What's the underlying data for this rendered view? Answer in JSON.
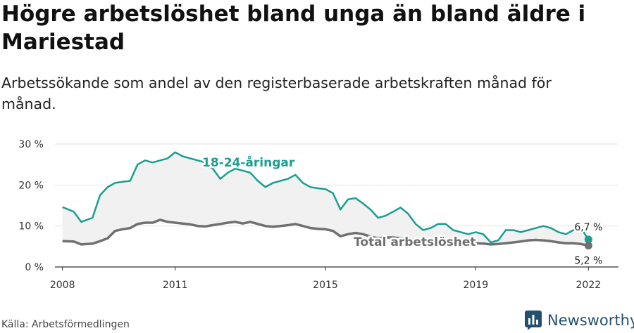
{
  "title": "Högre arbetslöshet bland unga än bland äldre i Mariestad",
  "subtitle": "Arbetssökande som andel av den registerbaserade arbetskraften månad för månad.",
  "source": "Källa: Arbetsförmedlingen",
  "brand": "Newsworthy",
  "colors": {
    "young": "#1a9e92",
    "total": "#707070",
    "band": "#f1f1f1",
    "grid": "#e2e2e2",
    "brand": "#24506d"
  },
  "chart_data": {
    "type": "line",
    "title": "Högre arbetslöshet bland unga än bland äldre i Mariestad",
    "xlabel": "",
    "ylabel": "",
    "ylim": [
      0,
      30
    ],
    "xlim": [
      2007.8,
      2022.8
    ],
    "y_ticks": [
      0,
      10,
      20,
      30
    ],
    "y_tick_labels": [
      "0 %",
      "10 %",
      "20 %",
      "30 %"
    ],
    "x_ticks": [
      2008,
      2011,
      2015,
      2019,
      2022
    ],
    "x_tick_labels": [
      "2008",
      "2011",
      "2015",
      "2019",
      "2022"
    ],
    "series": [
      {
        "name": "18-24-åringar",
        "color": "#1a9e92",
        "x": [
          2008.0,
          2008.3,
          2008.5,
          2008.8,
          2009.0,
          2009.2,
          2009.4,
          2009.6,
          2009.8,
          2010.0,
          2010.2,
          2010.4,
          2010.6,
          2010.8,
          2011.0,
          2011.2,
          2011.4,
          2011.6,
          2011.8,
          2012.0,
          2012.2,
          2012.4,
          2012.6,
          2012.8,
          2013.0,
          2013.2,
          2013.4,
          2013.6,
          2013.8,
          2014.0,
          2014.2,
          2014.4,
          2014.6,
          2014.8,
          2015.0,
          2015.2,
          2015.4,
          2015.6,
          2015.8,
          2016.0,
          2016.2,
          2016.4,
          2016.6,
          2016.8,
          2017.0,
          2017.2,
          2017.4,
          2017.6,
          2017.8,
          2018.0,
          2018.2,
          2018.4,
          2018.6,
          2018.8,
          2019.0,
          2019.2,
          2019.4,
          2019.6,
          2019.8,
          2020.0,
          2020.2,
          2020.4,
          2020.6,
          2020.8,
          2021.0,
          2021.2,
          2021.4,
          2021.6,
          2021.8,
          2022.0
        ],
        "values": [
          14.6,
          13.5,
          11.0,
          12.0,
          17.5,
          19.5,
          20.5,
          20.8,
          21.0,
          25.0,
          26.0,
          25.5,
          26.0,
          26.5,
          28.0,
          27.0,
          26.5,
          26.0,
          25.5,
          24.0,
          21.5,
          23.0,
          24.0,
          23.5,
          23.0,
          21.0,
          19.5,
          20.5,
          21.0,
          21.5,
          22.5,
          20.5,
          19.5,
          19.2,
          19.0,
          18.0,
          14.0,
          16.5,
          16.8,
          15.5,
          14.0,
          12.0,
          12.5,
          13.5,
          14.5,
          13.0,
          10.5,
          9.0,
          9.5,
          10.5,
          10.5,
          9.0,
          8.5,
          8.0,
          8.5,
          8.0,
          6.0,
          6.5,
          9.0,
          9.0,
          8.5,
          9.0,
          9.5,
          10.0,
          9.5,
          8.5,
          8.0,
          9.0,
          9.5,
          6.7
        ]
      },
      {
        "name": "Total arbetslöshet",
        "color": "#707070",
        "x": [
          2008.0,
          2008.3,
          2008.5,
          2008.8,
          2009.0,
          2009.2,
          2009.4,
          2009.6,
          2009.8,
          2010.0,
          2010.2,
          2010.4,
          2010.6,
          2010.8,
          2011.0,
          2011.2,
          2011.4,
          2011.6,
          2011.8,
          2012.0,
          2012.2,
          2012.4,
          2012.6,
          2012.8,
          2013.0,
          2013.2,
          2013.4,
          2013.6,
          2013.8,
          2014.0,
          2014.2,
          2014.4,
          2014.6,
          2014.8,
          2015.0,
          2015.2,
          2015.4,
          2015.6,
          2015.8,
          2016.0,
          2016.2,
          2016.4,
          2016.6,
          2016.8,
          2017.0,
          2017.2,
          2017.4,
          2017.6,
          2017.8,
          2018.0,
          2018.2,
          2018.4,
          2018.6,
          2018.8,
          2019.0,
          2019.2,
          2019.4,
          2019.6,
          2019.8,
          2020.0,
          2020.2,
          2020.4,
          2020.6,
          2020.8,
          2021.0,
          2021.2,
          2021.4,
          2021.6,
          2021.8,
          2022.0
        ],
        "values": [
          6.3,
          6.2,
          5.5,
          5.7,
          6.3,
          7.0,
          8.8,
          9.2,
          9.5,
          10.5,
          10.8,
          10.8,
          11.5,
          11.0,
          10.8,
          10.6,
          10.4,
          10.0,
          9.9,
          10.2,
          10.5,
          10.8,
          11.0,
          10.6,
          11.0,
          10.5,
          10.0,
          9.8,
          10.0,
          10.2,
          10.5,
          10.0,
          9.5,
          9.3,
          9.2,
          8.8,
          7.5,
          8.0,
          8.3,
          8.0,
          7.4,
          7.0,
          7.2,
          7.2,
          7.0,
          6.8,
          6.5,
          6.2,
          6.2,
          6.0,
          6.0,
          5.9,
          5.8,
          5.8,
          5.8,
          5.7,
          5.5,
          5.6,
          5.8,
          6.0,
          6.2,
          6.5,
          6.6,
          6.5,
          6.3,
          6.0,
          5.8,
          5.8,
          5.6,
          5.2
        ]
      }
    ],
    "annotations": [
      {
        "text": "18-24-åringar",
        "series": "18-24-åringar"
      },
      {
        "text": "Total arbetslöshet",
        "series": "Total arbetslöshet"
      },
      {
        "text": "6,7 %",
        "series": "18-24-åringar",
        "position": "last point"
      },
      {
        "text": "5,2 %",
        "series": "Total arbetslöshet",
        "position": "last point"
      }
    ]
  }
}
